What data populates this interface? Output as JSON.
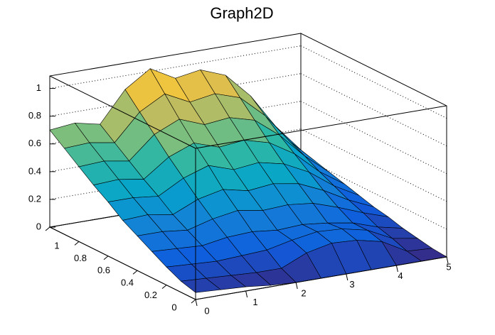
{
  "chart_data": {
    "type": "surface",
    "title": "Graph2D",
    "x": [
      0,
      0.5,
      1,
      1.5,
      2,
      2.5,
      3,
      3.5,
      4,
      4.5,
      5
    ],
    "y": [
      0,
      0.1,
      0.2,
      0.3,
      0.4,
      0.5,
      0.6,
      0.7,
      0.8,
      0.9,
      1
    ],
    "z": [
      [
        0.05,
        0.04,
        0.03,
        0.01,
        0,
        0,
        0,
        0,
        0,
        0,
        0
      ],
      [
        0.08,
        0.07,
        0.06,
        0.05,
        0.05,
        0.13,
        0.17,
        0.16,
        0.12,
        0.02,
        0.01
      ],
      [
        0.13,
        0.12,
        0.11,
        0.12,
        0.13,
        0.17,
        0.2,
        0.19,
        0.15,
        0.06,
        0.03
      ],
      [
        0.19,
        0.18,
        0.17,
        0.2,
        0.21,
        0.19,
        0.2,
        0.18,
        0.15,
        0.09,
        0.05
      ],
      [
        0.25,
        0.25,
        0.23,
        0.28,
        0.31,
        0.28,
        0.29,
        0.27,
        0.21,
        0.14,
        0.08
      ],
      [
        0.31,
        0.32,
        0.29,
        0.37,
        0.41,
        0.37,
        0.39,
        0.36,
        0.28,
        0.18,
        0.1
      ],
      [
        0.39,
        0.39,
        0.37,
        0.47,
        0.53,
        0.47,
        0.49,
        0.45,
        0.36,
        0.23,
        0.13
      ],
      [
        0.46,
        0.47,
        0.44,
        0.57,
        0.64,
        0.58,
        0.6,
        0.55,
        0.44,
        0.28,
        0.16
      ],
      [
        0.54,
        0.55,
        0.52,
        0.68,
        0.76,
        0.69,
        0.71,
        0.66,
        0.52,
        0.34,
        0.19
      ],
      [
        0.62,
        0.63,
        0.6,
        0.79,
        0.89,
        0.8,
        0.83,
        0.77,
        0.61,
        0.39,
        0.22
      ],
      [
        0.7,
        0.72,
        0.68,
        0.9,
        1.02,
        0.92,
        0.95,
        0.88,
        0.7,
        0.45,
        0.25
      ]
    ],
    "xlim": [
      0,
      5
    ],
    "ylim": [
      0,
      1
    ],
    "zlim": [
      0,
      1.09
    ],
    "xticks": [
      0,
      1,
      2,
      3,
      4,
      5
    ],
    "yticks": [
      0,
      0.2,
      0.4,
      0.6,
      0.8,
      1
    ],
    "zticks": [
      0,
      0.2,
      0.4,
      0.6,
      0.8,
      1
    ],
    "grid": true,
    "palette": [
      "#352a87",
      "#0f5cdd",
      "#1481d6",
      "#06a4ca",
      "#2eb7a4",
      "#87bf77",
      "#d1bb59",
      "#fec832",
      "#f9fb0e"
    ]
  }
}
